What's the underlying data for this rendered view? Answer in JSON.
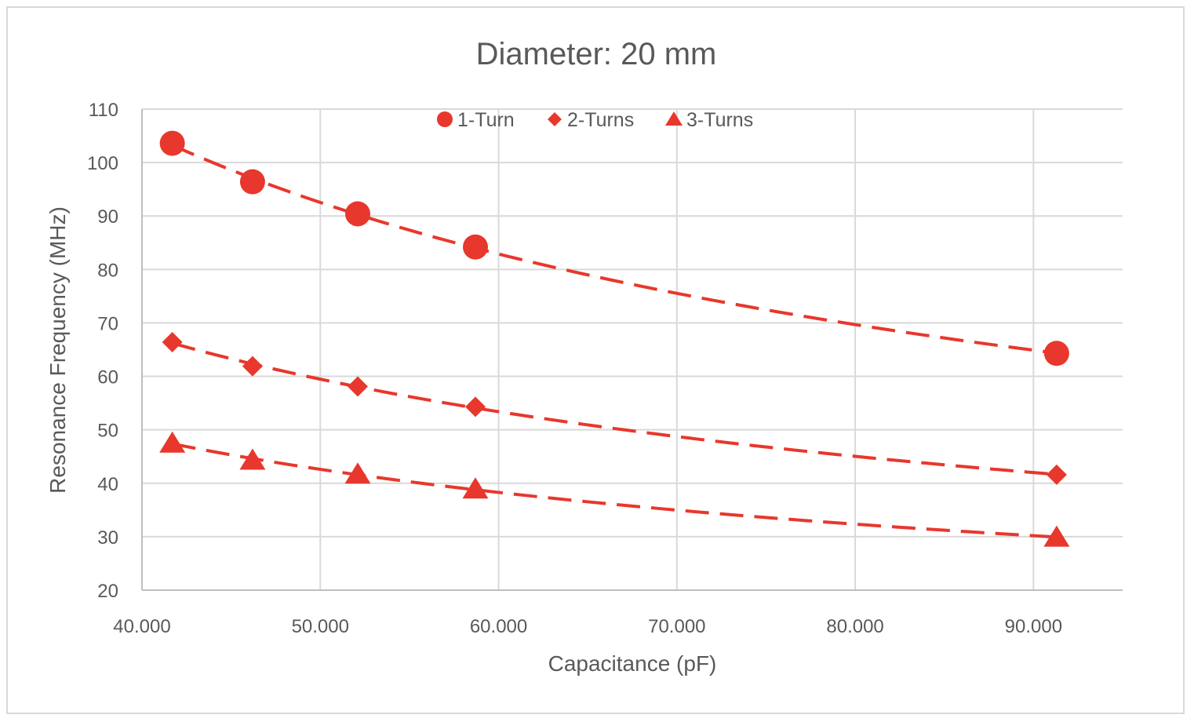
{
  "chart_data": {
    "type": "scatter",
    "title": "Diameter: 20 mm",
    "xlabel": "Capacitance (pF)",
    "ylabel": "Resonance Frequency (MHz)",
    "xlim": [
      40,
      95
    ],
    "ylim": [
      20,
      110
    ],
    "x_ticks": [
      40,
      50,
      60,
      70,
      80,
      90
    ],
    "x_tick_labels": [
      "40.000",
      "50.000",
      "60.000",
      "70.000",
      "80.000",
      "90.000"
    ],
    "y_ticks": [
      20,
      30,
      40,
      50,
      60,
      70,
      80,
      90,
      100,
      110
    ],
    "y_tick_labels": [
      "20",
      "30",
      "40",
      "50",
      "60",
      "70",
      "80",
      "90",
      "100",
      "110"
    ],
    "grid": true,
    "legend_position": "top-center",
    "color": "#e8372c",
    "series": [
      {
        "name": "1-Turn",
        "marker": "circle",
        "x": [
          41.7,
          46.2,
          52.1,
          58.7,
          91.3
        ],
        "y": [
          103.6,
          96.4,
          90.4,
          84.2,
          64.3
        ],
        "trendline": "dashed"
      },
      {
        "name": "2-Turns",
        "marker": "diamond",
        "x": [
          41.7,
          46.2,
          52.1,
          58.7,
          91.3
        ],
        "y": [
          66.4,
          61.9,
          58.1,
          54.3,
          41.6
        ],
        "trendline": "dashed"
      },
      {
        "name": "3-Turns",
        "marker": "triangle",
        "x": [
          41.7,
          46.2,
          52.1,
          58.7,
          91.3
        ],
        "y": [
          47.5,
          44.3,
          41.7,
          38.9,
          29.9
        ],
        "trendline": "dashed"
      }
    ]
  }
}
